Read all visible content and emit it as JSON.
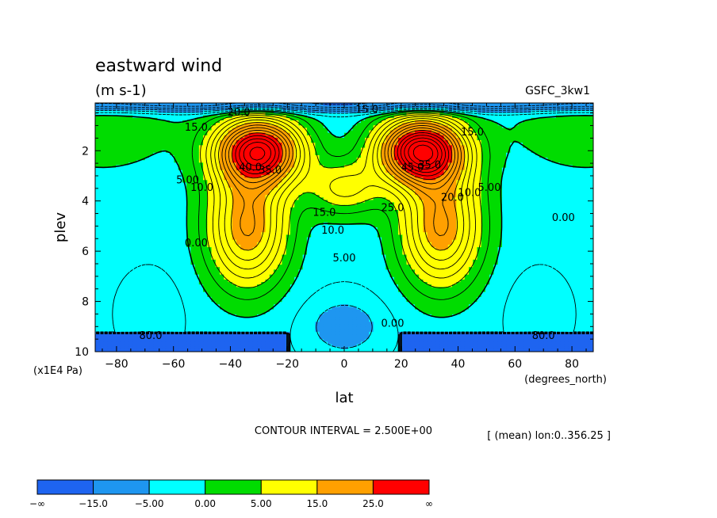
{
  "chart_data": {
    "type": "heatmap",
    "title": "eastward wind",
    "units": "(m s-1)",
    "model": "GSFC_3kw1",
    "xlabel": "lat",
    "x_units": "(degrees_north)",
    "ylabel": "plev",
    "y_units": "(x1E4 Pa)",
    "xlim": [
      -87.5,
      87.5
    ],
    "ylim": [
      0.1,
      10
    ],
    "y_inverted": true,
    "x_ticks": [
      -80,
      -60,
      -40,
      -20,
      0,
      20,
      40,
      60,
      80
    ],
    "x_tick_labels": [
      "−80",
      "−60",
      "−40",
      "−20",
      "0",
      "20",
      "40",
      "60",
      "80"
    ],
    "y_ticks": [
      2,
      4,
      6,
      8,
      10
    ],
    "y_tick_labels": [
      "2",
      "4",
      "6",
      "8",
      "10"
    ],
    "contour_interval_text": "CONTOUR INTERVAL = 2.500E+00",
    "averaging_text": "[ (mean) lon:0..356.25 ]",
    "colorbar": {
      "colors": [
        "#1e64f0",
        "#1e96f0",
        "#00ffff",
        "#00dc00",
        "#ffff00",
        "#ffa000",
        "#ff0000"
      ],
      "labels": [
        "−∞",
        "−15.0",
        "−5.00",
        "0.00",
        "5.00",
        "15.0",
        "25.0",
        "∞"
      ]
    },
    "contour_labels": [
      {
        "text": "40.0",
        "lat": -33,
        "plev": 2.8
      },
      {
        "text": "35.0",
        "lat": -26,
        "plev": 2.9
      },
      {
        "text": "45.0",
        "lat": 24,
        "plev": 2.8
      },
      {
        "text": "35.0",
        "lat": 30,
        "plev": 2.7
      },
      {
        "text": "15.0",
        "lat": -7,
        "plev": 4.6
      },
      {
        "text": "10.0",
        "lat": -4,
        "plev": 5.3
      },
      {
        "text": "5.00",
        "lat": 0,
        "plev": 6.4
      },
      {
        "text": "25.0",
        "lat": 17,
        "plev": 4.4
      },
      {
        "text": "20.0",
        "lat": 38,
        "plev": 4.0
      },
      {
        "text": "10.0",
        "lat": 44,
        "plev": 3.8
      },
      {
        "text": "5.00",
        "lat": 51,
        "plev": 3.6
      },
      {
        "text": "15.0",
        "lat": 45,
        "plev": 1.4
      },
      {
        "text": "15.0",
        "lat": -52,
        "plev": 1.2
      },
      {
        "text": "10.0",
        "lat": -50,
        "plev": 3.6
      },
      {
        "text": "5.00",
        "lat": -55,
        "plev": 3.3
      },
      {
        "text": "0.00",
        "lat": -52,
        "plev": 5.8
      },
      {
        "text": "0.00",
        "lat": 77,
        "plev": 4.8
      },
      {
        "text": "0.00",
        "lat": 17,
        "plev": 9.0
      },
      {
        "text": "20.0",
        "lat": -37,
        "plev": 0.6
      },
      {
        "text": "15.0",
        "lat": 8,
        "plev": 0.5
      },
      {
        "text": "80.0",
        "lat": -68,
        "plev": 9.5
      },
      {
        "text": "80.0",
        "lat": 70,
        "plev": 9.5
      }
    ]
  }
}
